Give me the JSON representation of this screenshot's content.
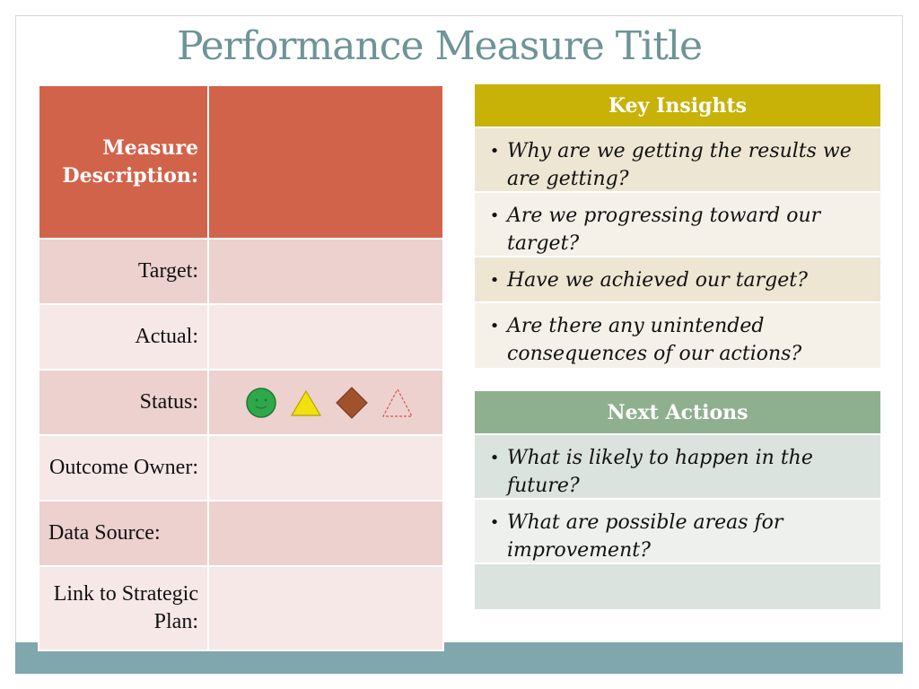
{
  "slide": {
    "title": "Performance Measure Title"
  },
  "measure_table": {
    "rows": [
      {
        "label": "Measure Description:",
        "value": ""
      },
      {
        "label": "Target:",
        "value": ""
      },
      {
        "label": "Actual:",
        "value": ""
      },
      {
        "label": "Status:",
        "value": ""
      },
      {
        "label": "Outcome Owner:",
        "value": ""
      },
      {
        "label": "Data Source:",
        "value": ""
      },
      {
        "label": "Link to Strategic Plan:",
        "value": ""
      }
    ],
    "status_icons": [
      {
        "name": "green-smiley-circle-icon",
        "color": "#2ea84a"
      },
      {
        "name": "yellow-triangle-icon",
        "color": "#f2e10f"
      },
      {
        "name": "brown-diamond-icon",
        "color": "#a0522d"
      },
      {
        "name": "red-dashed-triangle-icon",
        "color": "#d9534f"
      }
    ]
  },
  "key_insights": {
    "header": "Key Insights",
    "items": [
      "Why are we getting the results we are getting?",
      "Are we progressing toward our target?",
      "Have we achieved our target?",
      "Are there any unintended consequences of our actions?"
    ]
  },
  "next_actions": {
    "header": "Next Actions",
    "items": [
      "What is likely to happen in the future?",
      "What are possible areas for improvement?",
      ""
    ]
  },
  "colors": {
    "title": "#6e9497",
    "measure_header": "#d2634b",
    "insights_header": "#c8b208",
    "next_header": "#8fb08e",
    "bottom_bar": "#7fa7ad"
  }
}
